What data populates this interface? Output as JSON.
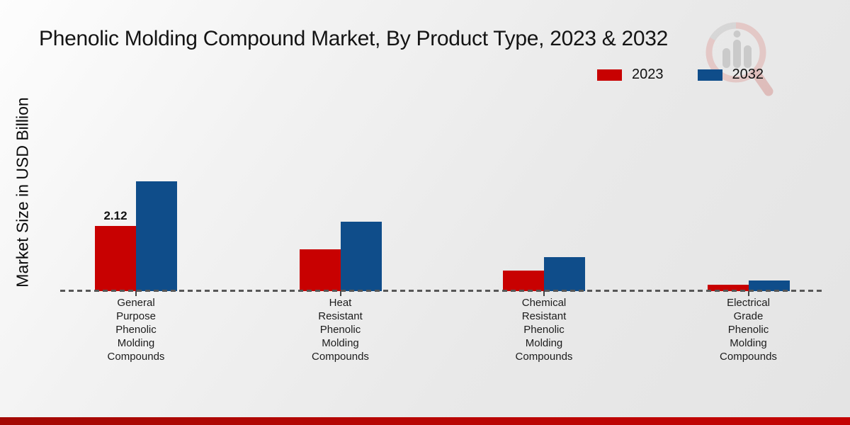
{
  "chart_data": {
    "type": "bar",
    "title": "Phenolic Molding Compound Market, By Product Type, 2023 & 2032",
    "ylabel": "Market Size in USD Billion",
    "xlabel": "",
    "categories": [
      [
        "General",
        "Purpose",
        "Phenolic",
        "Molding",
        "Compounds"
      ],
      [
        "Heat",
        "Resistant",
        "Phenolic",
        "Molding",
        "Compounds"
      ],
      [
        "Chemical",
        "Resistant",
        "Phenolic",
        "Molding",
        "Compounds"
      ],
      [
        "Electrical",
        "Grade",
        "Phenolic",
        "Molding",
        "Compounds"
      ]
    ],
    "series": [
      {
        "name": "2023",
        "color": "#c80101",
        "values": [
          2.12,
          1.36,
          0.67,
          0.21
        ]
      },
      {
        "name": "2032",
        "color": "#0f4d8a",
        "values": [
          3.55,
          2.24,
          1.11,
          0.35
        ]
      }
    ],
    "bar_label": {
      "text": "2.12",
      "series_index": 0,
      "category_index": 0
    },
    "legend_position": "top-right",
    "baseline_style": "dashed",
    "grid": false,
    "ylim": [
      0,
      4
    ]
  },
  "colors": {
    "series_2023": "#c80101",
    "series_2032": "#0f4d8a",
    "baseline": "#575757",
    "footer_strip": "#b70603",
    "background": "#ececec",
    "watermark_ring": "#e3b4b2",
    "watermark_bars": "#b3b3b3"
  },
  "watermark": {
    "name": "magnifier-bar-chart-logo"
  }
}
